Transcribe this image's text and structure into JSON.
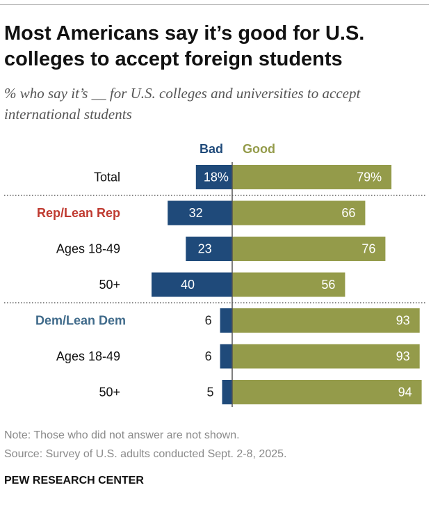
{
  "title": "Most Americans say it’s good for U.S. colleges to accept foreign students",
  "subtitle": "% who say it’s __ for U.S. colleges and universities to accept international students",
  "note": "Note: Those who did not answer are not shown.",
  "source": "Source: Survey of U.S. adults conducted Sept. 2-8, 2025.",
  "brand": "PEW RESEARCH CENTER",
  "colors": {
    "bad": "#1f4a7a",
    "good": "#949b4a",
    "rep": "#bf3a30",
    "dem": "#3f6a8a",
    "separator": "#444444",
    "axis": "#555555"
  },
  "chart_data": {
    "type": "bar",
    "orientation": "horizontal-diverging",
    "series": [
      {
        "name": "Bad",
        "values": [
          18,
          32,
          23,
          40,
          6,
          6,
          5
        ]
      },
      {
        "name": "Good",
        "values": [
          79,
          66,
          76,
          56,
          93,
          93,
          94
        ]
      }
    ],
    "categories": [
      "Total",
      "Rep/Lean Rep",
      "Ages 18-49",
      "50+",
      "Dem/Lean Dem",
      "Ages 18-49",
      "50+"
    ],
    "category_styles": [
      "plain",
      "rep",
      "plain",
      "plain",
      "dem",
      "plain",
      "plain"
    ],
    "value_labels": {
      "Bad": [
        "18%",
        "32",
        "23",
        "40",
        "6",
        "6",
        "5"
      ],
      "Good": [
        "79%",
        "66",
        "76",
        "56",
        "93",
        "93",
        "94"
      ]
    },
    "separators_after": [
      0,
      3
    ],
    "legend": [
      "Bad",
      "Good"
    ],
    "xlabel": "",
    "ylabel": ""
  }
}
